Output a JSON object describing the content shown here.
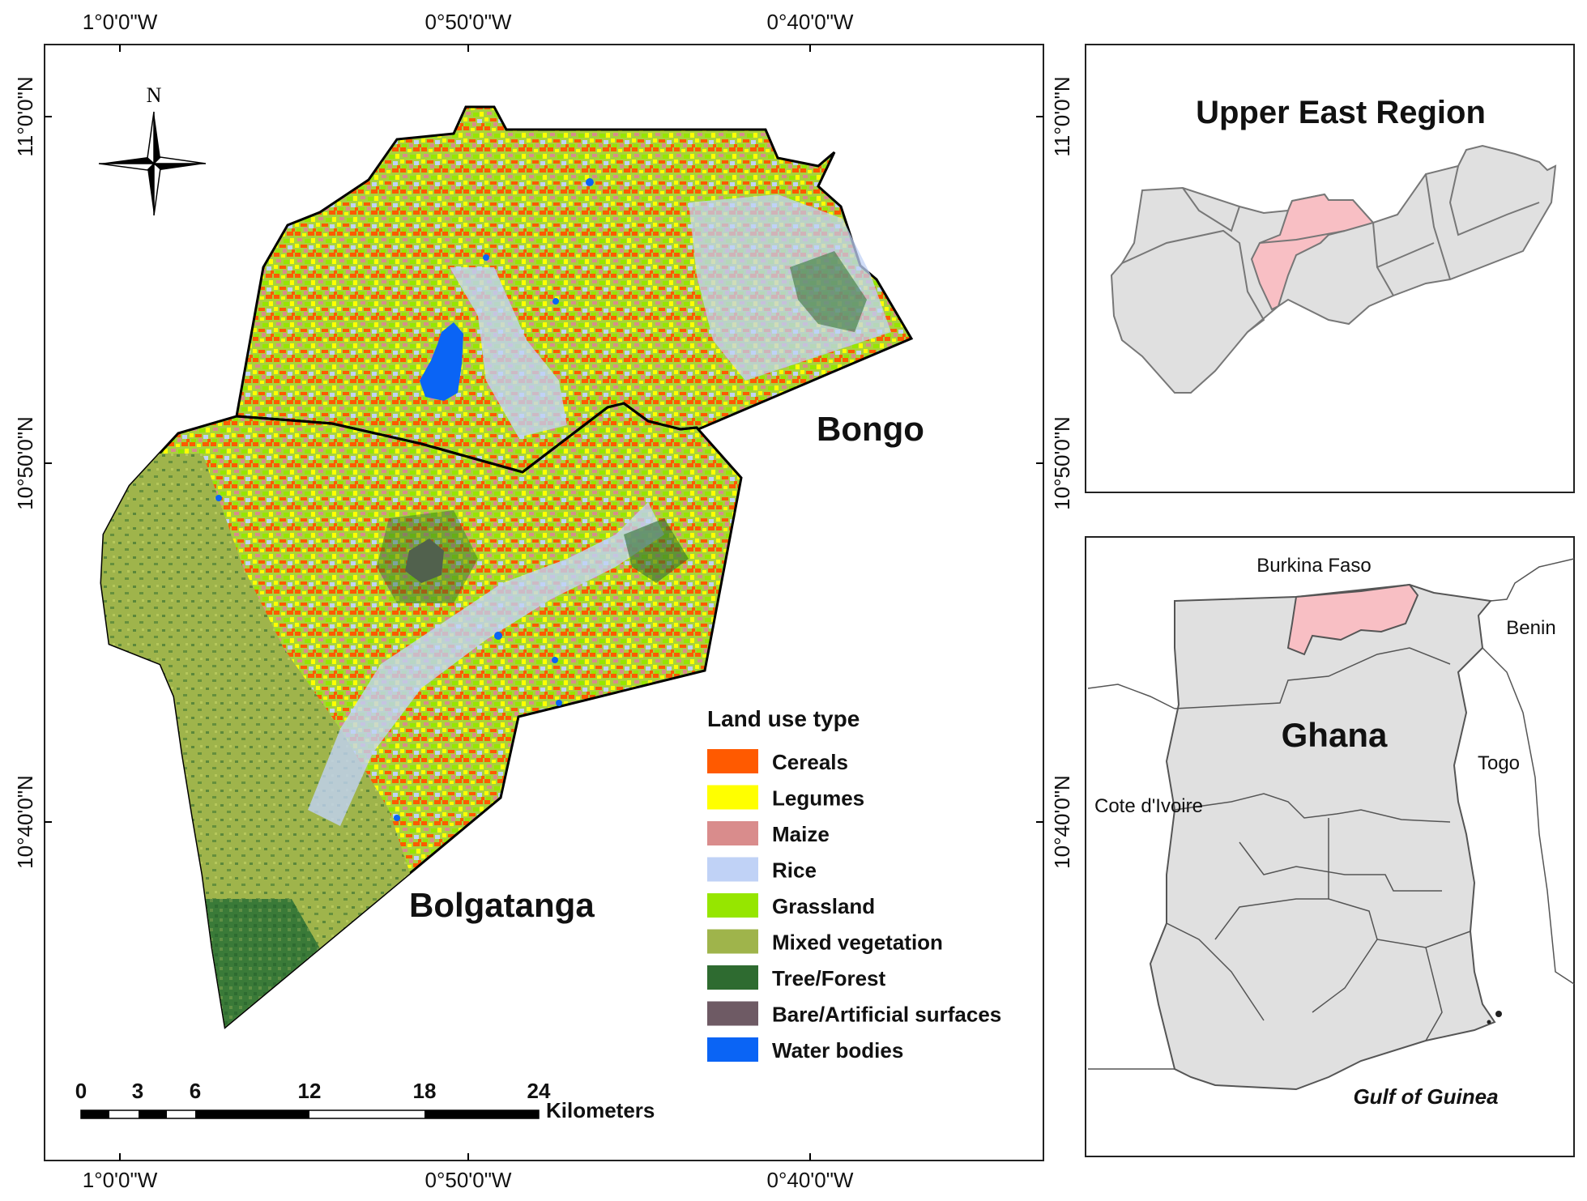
{
  "main_map": {
    "top_ticks": [
      "1°0'0\"W",
      "0°50'0\"W",
      "0°40'0\"W"
    ],
    "bottom_ticks": [
      "1°0'0\"W",
      "0°50'0\"W",
      "0°40'0\"W"
    ],
    "left_ticks": [
      "11°0'0\"N",
      "10°50'0\"N",
      "10°40'0\"N"
    ],
    "district_labels": [
      "Bongo",
      "Bolgatanga"
    ],
    "north_arrow_label": "N",
    "scalebar": {
      "labels": [
        "0",
        "3",
        "6",
        "12",
        "18",
        "24"
      ],
      "units": "Kilometers"
    },
    "legend": {
      "title": "Land use type",
      "items": [
        {
          "label": "Cereals",
          "color": "#ff5a00"
        },
        {
          "label": "Legumes",
          "color": "#ffff00"
        },
        {
          "label": "Maize",
          "color": "#d98c8c"
        },
        {
          "label": "Rice",
          "color": "#c0d2f6"
        },
        {
          "label": "Grassland",
          "color": "#96e600"
        },
        {
          "label": "Mixed vegetation",
          "color": "#9fb44b"
        },
        {
          "label": "Tree/Forest",
          "color": "#2e6b30"
        },
        {
          "label": "Bare/Artificial surfaces",
          "color": "#6e5a64"
        },
        {
          "label": "Water bodies",
          "color": "#0a64f5"
        }
      ]
    }
  },
  "right_ticks": [
    "11°0'0\"N",
    "10°50'0\"N",
    "10°40'0\"N"
  ],
  "inset_upper_east": {
    "title": "Upper East Region",
    "region_fill": "#e0e0e0",
    "highlight_fill": "#f8bfc4"
  },
  "inset_ghana": {
    "country_label": "Ghana",
    "neighbors": [
      "Burkina Faso",
      "Benin",
      "Togo",
      "Cote d'Ivoire"
    ],
    "sea_label": "Gulf of Guinea",
    "highlight_fill": "#f8bfc4"
  }
}
